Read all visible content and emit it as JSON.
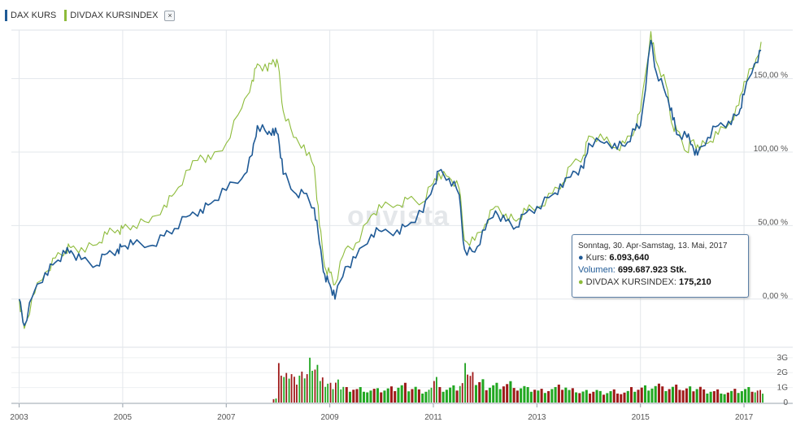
{
  "legend": {
    "items": [
      {
        "label": "DAX KURS",
        "color": "#1f5a96"
      },
      {
        "label": "DIVDAX KURSINDEX",
        "color": "#8dbb3a"
      }
    ],
    "close_symbol": "×"
  },
  "watermark": "onvista",
  "tooltip": {
    "date_range": "Sonntag, 30. Apr-Samstag, 13. Mai, 2017",
    "kurs_label": "Kurs:",
    "kurs_value": "6.093,640",
    "volumen_label": "Volumen:",
    "volumen_value": "699.687.923 Stk.",
    "divdax_label": "DIVDAX KURSINDEX:",
    "divdax_value": "175,210"
  },
  "chart_data": {
    "type": "line",
    "x_ticks": [
      "2003",
      "2005",
      "2007",
      "2009",
      "2011",
      "2013",
      "2015",
      "2017"
    ],
    "y_ticks": [
      "0,00 %",
      "50,00 %",
      "100,00 %",
      "150,00 %"
    ],
    "volume_ticks": [
      "0",
      "1G",
      "2G",
      "3G"
    ],
    "ylim": [
      -25,
      183
    ],
    "grid": true,
    "legend_position": "top-left",
    "series": [
      {
        "name": "DAX KURS",
        "color": "#1f5a96",
        "points": [
          [
            2003.0,
            0
          ],
          [
            2003.1,
            -18
          ],
          [
            2003.3,
            6
          ],
          [
            2003.5,
            18
          ],
          [
            2003.7,
            25
          ],
          [
            2003.9,
            31
          ],
          [
            2004.0,
            33
          ],
          [
            2004.2,
            27
          ],
          [
            2004.5,
            23
          ],
          [
            2004.7,
            31
          ],
          [
            2004.9,
            34
          ],
          [
            2005.0,
            36
          ],
          [
            2005.2,
            37
          ],
          [
            2005.5,
            36
          ],
          [
            2005.8,
            43
          ],
          [
            2006.0,
            48
          ],
          [
            2006.3,
            57
          ],
          [
            2006.5,
            61
          ],
          [
            2006.7,
            65
          ],
          [
            2007.0,
            74
          ],
          [
            2007.3,
            82
          ],
          [
            2007.5,
            98
          ],
          [
            2007.6,
            118
          ],
          [
            2007.8,
            112
          ],
          [
            2007.9,
            116
          ],
          [
            2008.0,
            112
          ],
          [
            2008.1,
            85
          ],
          [
            2008.3,
            73
          ],
          [
            2008.5,
            72
          ],
          [
            2008.7,
            62
          ],
          [
            2008.8,
            38
          ],
          [
            2008.9,
            17
          ],
          [
            2009.0,
            10
          ],
          [
            2009.1,
            0
          ],
          [
            2009.3,
            22
          ],
          [
            2009.5,
            28
          ],
          [
            2009.8,
            44
          ],
          [
            2010.0,
            46
          ],
          [
            2010.3,
            47
          ],
          [
            2010.5,
            50
          ],
          [
            2010.8,
            59
          ],
          [
            2011.0,
            77
          ],
          [
            2011.1,
            87
          ],
          [
            2011.3,
            82
          ],
          [
            2011.5,
            71
          ],
          [
            2011.6,
            34
          ],
          [
            2011.8,
            32
          ],
          [
            2012.0,
            47
          ],
          [
            2012.2,
            60
          ],
          [
            2012.4,
            53
          ],
          [
            2012.6,
            49
          ],
          [
            2012.8,
            59
          ],
          [
            2013.0,
            63
          ],
          [
            2013.3,
            71
          ],
          [
            2013.5,
            76
          ],
          [
            2013.7,
            87
          ],
          [
            2013.9,
            89
          ],
          [
            2014.0,
            106
          ],
          [
            2014.3,
            106
          ],
          [
            2014.5,
            106
          ],
          [
            2014.7,
            104
          ],
          [
            2014.9,
            115
          ],
          [
            2015.0,
            118
          ],
          [
            2015.2,
            176
          ],
          [
            2015.3,
            155
          ],
          [
            2015.5,
            138
          ],
          [
            2015.6,
            130
          ],
          [
            2015.7,
            112
          ],
          [
            2015.9,
            110
          ],
          [
            2016.0,
            105
          ],
          [
            2016.1,
            98
          ],
          [
            2016.3,
            110
          ],
          [
            2016.5,
            118
          ],
          [
            2016.7,
            121
          ],
          [
            2016.9,
            126
          ],
          [
            2017.0,
            139
          ],
          [
            2017.2,
            160
          ],
          [
            2017.33,
            169
          ]
        ]
      },
      {
        "name": "DIVDAX KURSINDEX",
        "color": "#8dbb3a",
        "points": [
          [
            2003.0,
            0
          ],
          [
            2003.1,
            -20
          ],
          [
            2003.3,
            4
          ],
          [
            2003.5,
            18
          ],
          [
            2003.7,
            28
          ],
          [
            2003.9,
            33
          ],
          [
            2004.0,
            35
          ],
          [
            2004.2,
            35
          ],
          [
            2004.5,
            37
          ],
          [
            2004.7,
            44
          ],
          [
            2004.9,
            47
          ],
          [
            2005.0,
            48
          ],
          [
            2005.2,
            50
          ],
          [
            2005.5,
            52
          ],
          [
            2005.8,
            64
          ],
          [
            2006.0,
            72
          ],
          [
            2006.3,
            88
          ],
          [
            2006.5,
            98
          ],
          [
            2006.7,
            95
          ],
          [
            2007.0,
            106
          ],
          [
            2007.3,
            130
          ],
          [
            2007.5,
            149
          ],
          [
            2007.6,
            160
          ],
          [
            2007.8,
            155
          ],
          [
            2007.9,
            163
          ],
          [
            2008.0,
            160
          ],
          [
            2008.1,
            128
          ],
          [
            2008.3,
            110
          ],
          [
            2008.5,
            105
          ],
          [
            2008.7,
            90
          ],
          [
            2008.8,
            50
          ],
          [
            2008.9,
            22
          ],
          [
            2009.0,
            18
          ],
          [
            2009.1,
            10
          ],
          [
            2009.3,
            34
          ],
          [
            2009.5,
            38
          ],
          [
            2009.8,
            57
          ],
          [
            2010.0,
            62
          ],
          [
            2010.3,
            64
          ],
          [
            2010.5,
            68
          ],
          [
            2010.8,
            66
          ],
          [
            2011.0,
            79
          ],
          [
            2011.1,
            86
          ],
          [
            2011.3,
            83
          ],
          [
            2011.5,
            75
          ],
          [
            2011.6,
            40
          ],
          [
            2011.8,
            40
          ],
          [
            2012.0,
            51
          ],
          [
            2012.2,
            63
          ],
          [
            2012.4,
            58
          ],
          [
            2012.6,
            53
          ],
          [
            2012.8,
            60
          ],
          [
            2013.0,
            62
          ],
          [
            2013.3,
            72
          ],
          [
            2013.5,
            79
          ],
          [
            2013.7,
            93
          ],
          [
            2013.9,
            98
          ],
          [
            2014.0,
            111
          ],
          [
            2014.3,
            108
          ],
          [
            2014.5,
            103
          ],
          [
            2014.7,
            106
          ],
          [
            2014.9,
            116
          ],
          [
            2015.0,
            128
          ],
          [
            2015.2,
            182
          ],
          [
            2015.3,
            162
          ],
          [
            2015.5,
            145
          ],
          [
            2015.6,
            120
          ],
          [
            2015.7,
            115
          ],
          [
            2015.9,
            100
          ],
          [
            2016.0,
            108
          ],
          [
            2016.1,
            105
          ],
          [
            2016.3,
            106
          ],
          [
            2016.5,
            112
          ],
          [
            2016.7,
            119
          ],
          [
            2016.9,
            132
          ],
          [
            2017.0,
            148
          ],
          [
            2017.2,
            158
          ],
          [
            2017.33,
            175
          ]
        ]
      }
    ],
    "volume": {
      "unit": "G",
      "points": [
        [
          2007.9,
          0.3,
          "up"
        ],
        [
          2008.0,
          2.4,
          "down"
        ],
        [
          2008.1,
          1.8,
          "up"
        ],
        [
          2008.2,
          2.0,
          "down"
        ],
        [
          2008.3,
          1.5,
          "down"
        ],
        [
          2008.4,
          1.8,
          "up"
        ],
        [
          2008.5,
          1.9,
          "down"
        ],
        [
          2008.6,
          2.5,
          "up"
        ],
        [
          2008.7,
          2.1,
          "down"
        ],
        [
          2008.8,
          1.6,
          "down"
        ],
        [
          2008.9,
          1.4,
          "up"
        ],
        [
          2009.0,
          1.2,
          "down"
        ],
        [
          2009.1,
          1.4,
          "up"
        ],
        [
          2009.2,
          1.1,
          "up"
        ],
        [
          2009.3,
          0.9,
          "down"
        ],
        [
          2009.5,
          0.9,
          "up"
        ],
        [
          2009.7,
          0.8,
          "up"
        ],
        [
          2009.9,
          0.8,
          "up"
        ],
        [
          2010.1,
          0.9,
          "down"
        ],
        [
          2010.3,
          1.1,
          "up"
        ],
        [
          2010.5,
          1.0,
          "up"
        ],
        [
          2010.7,
          0.8,
          "up"
        ],
        [
          2010.9,
          0.9,
          "up"
        ],
        [
          2011.0,
          1.8,
          "down"
        ],
        [
          2011.1,
          0.9,
          "up"
        ],
        [
          2011.3,
          1.0,
          "up"
        ],
        [
          2011.5,
          1.3,
          "up"
        ],
        [
          2011.6,
          2.2,
          "down"
        ],
        [
          2011.7,
          1.7,
          "down"
        ],
        [
          2011.8,
          1.3,
          "up"
        ],
        [
          2012.0,
          1.1,
          "up"
        ],
        [
          2012.2,
          1.2,
          "up"
        ],
        [
          2012.4,
          1.3,
          "down"
        ],
        [
          2012.6,
          1.0,
          "up"
        ],
        [
          2012.8,
          0.9,
          "up"
        ],
        [
          2013.0,
          0.8,
          "up"
        ],
        [
          2013.2,
          0.9,
          "up"
        ],
        [
          2013.4,
          1.0,
          "down"
        ],
        [
          2013.6,
          0.8,
          "up"
        ],
        [
          2013.8,
          0.7,
          "up"
        ],
        [
          2014.0,
          0.8,
          "down"
        ],
        [
          2014.2,
          0.7,
          "up"
        ],
        [
          2014.4,
          0.8,
          "down"
        ],
        [
          2014.6,
          0.7,
          "down"
        ],
        [
          2014.8,
          0.9,
          "down"
        ],
        [
          2015.0,
          1.0,
          "up"
        ],
        [
          2015.2,
          1.1,
          "up"
        ],
        [
          2015.4,
          0.9,
          "down"
        ],
        [
          2015.6,
          1.0,
          "down"
        ],
        [
          2015.8,
          0.9,
          "down"
        ],
        [
          2016.0,
          1.0,
          "down"
        ],
        [
          2016.2,
          0.8,
          "up"
        ],
        [
          2016.4,
          0.8,
          "down"
        ],
        [
          2016.6,
          0.7,
          "up"
        ],
        [
          2016.8,
          0.8,
          "up"
        ],
        [
          2017.0,
          0.9,
          "up"
        ],
        [
          2017.2,
          0.8,
          "up"
        ],
        [
          2017.3,
          0.7,
          "up"
        ]
      ]
    }
  }
}
